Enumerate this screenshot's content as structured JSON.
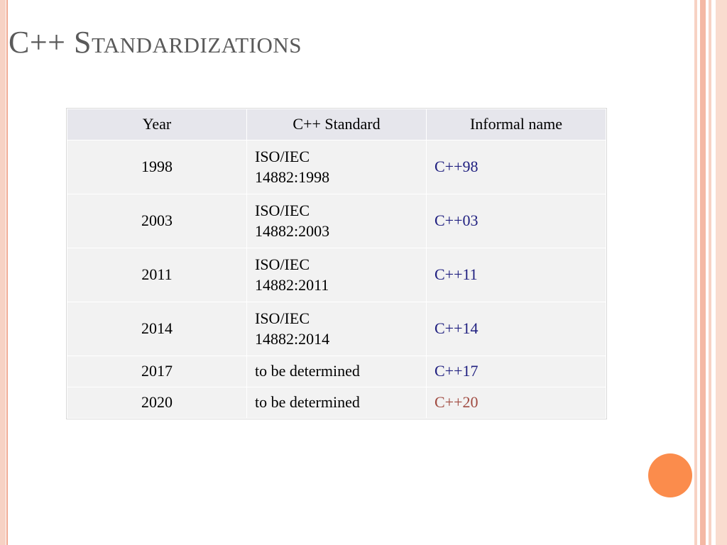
{
  "title": "C++ Standardizations",
  "table": {
    "header": [
      "Year",
      "C++ Standard",
      "Informal name"
    ],
    "rows": [
      [
        "1998",
        "ISO/IEC\n14882:1998",
        "C++98"
      ],
      [
        "2003",
        "ISO/IEC\n14882:2003",
        "C++03"
      ],
      [
        "2011",
        "ISO/IEC\n14882:2011",
        "C++11"
      ],
      [
        "2014",
        "ISO/IEC\n14882:2014",
        "C++14"
      ],
      [
        "2017",
        "to be determined",
        "C++17"
      ],
      [
        "2020",
        "to be determined",
        "C++20"
      ]
    ]
  }
}
